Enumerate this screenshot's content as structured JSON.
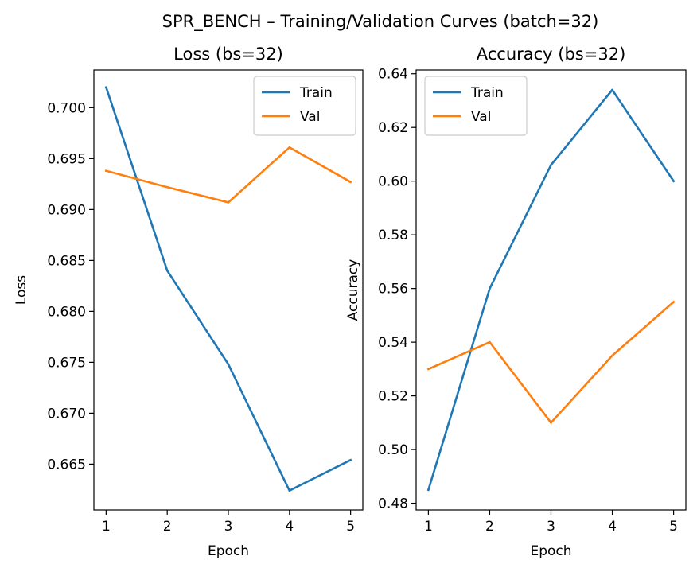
{
  "figure": {
    "suptitle": "SPR_BENCH – Training/Validation Curves (batch=32)"
  },
  "colors": {
    "train": "#1f77b4",
    "val": "#ff7f0e"
  },
  "chart_data": [
    {
      "type": "line",
      "title": "Loss (bs=32)",
      "xlabel": "Epoch",
      "ylabel": "Loss",
      "x": [
        1,
        2,
        3,
        4,
        5
      ],
      "xticks": [
        "1",
        "2",
        "3",
        "4",
        "5"
      ],
      "yticks": [
        "0.665",
        "0.670",
        "0.675",
        "0.680",
        "0.685",
        "0.690",
        "0.695",
        "0.700"
      ],
      "ylim": [
        0.6605,
        0.7037
      ],
      "legend_position": "top-right",
      "series": [
        {
          "name": "Train",
          "color": "#1f77b4",
          "values": [
            0.702,
            0.684,
            0.6748,
            0.6624,
            0.6654
          ]
        },
        {
          "name": "Val",
          "color": "#ff7f0e",
          "values": [
            0.6938,
            0.6922,
            0.6907,
            0.6961,
            0.6927
          ]
        }
      ]
    },
    {
      "type": "line",
      "title": "Accuracy (bs=32)",
      "xlabel": "Epoch",
      "ylabel": "Accuracy",
      "x": [
        1,
        2,
        3,
        4,
        5
      ],
      "xticks": [
        "1",
        "2",
        "3",
        "4",
        "5"
      ],
      "yticks": [
        "0.48",
        "0.50",
        "0.52",
        "0.54",
        "0.56",
        "0.58",
        "0.60",
        "0.62",
        "0.64"
      ],
      "ylim": [
        0.4775,
        0.6414
      ],
      "legend_position": "top-left",
      "series": [
        {
          "name": "Train",
          "color": "#1f77b4",
          "values": [
            0.485,
            0.56,
            0.606,
            0.634,
            0.6
          ]
        },
        {
          "name": "Val",
          "color": "#ff7f0e",
          "values": [
            0.53,
            0.54,
            0.51,
            0.535,
            0.555
          ]
        }
      ]
    }
  ]
}
